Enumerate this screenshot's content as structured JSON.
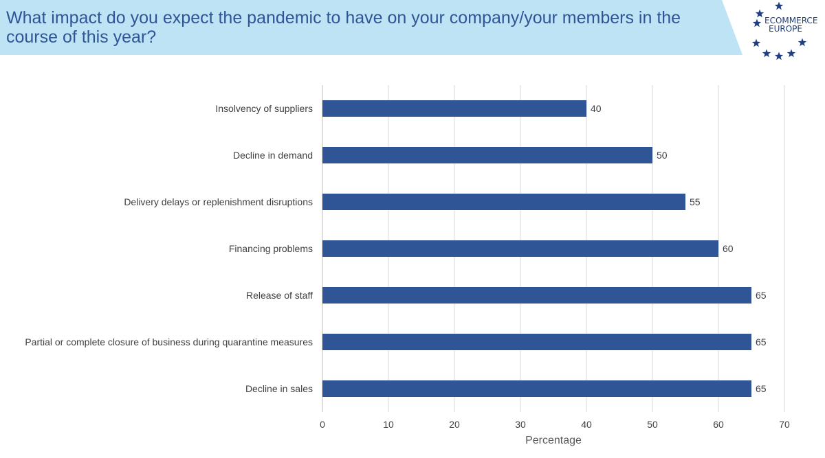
{
  "header": {
    "title": "What impact do you expect the pandemic to have on your company/your members in the course of this year?",
    "logo_line1": "ECOMMERCE",
    "logo_line2": "EUROPE"
  },
  "colors": {
    "banner": "#bde3f5",
    "title": "#2f5597",
    "bar": "#2f5597",
    "star": "#1f3f82",
    "grid": "#d9d9d9",
    "text": "#404040"
  },
  "chart_data": {
    "type": "bar",
    "orientation": "horizontal",
    "categories": [
      "Insolvency of suppliers",
      "Decline in demand",
      "Delivery delays or replenishment disruptions",
      "Financing problems",
      "Release of staff",
      "Partial or complete closure of business during quarantine measures",
      "Decline in sales"
    ],
    "values": [
      40,
      50,
      55,
      60,
      65,
      65,
      65
    ],
    "data_labels": [
      "40",
      "50",
      "55",
      "60",
      "65",
      "65",
      "65"
    ],
    "xlabel": "Percentage",
    "ylabel": "",
    "xlim": [
      0,
      70
    ],
    "xticks": [
      0,
      10,
      20,
      30,
      40,
      50,
      60,
      70
    ],
    "xtick_labels": [
      "0",
      "10",
      "20",
      "30",
      "40",
      "50",
      "60",
      "70"
    ],
    "grid": "vertical",
    "legend": "none"
  }
}
